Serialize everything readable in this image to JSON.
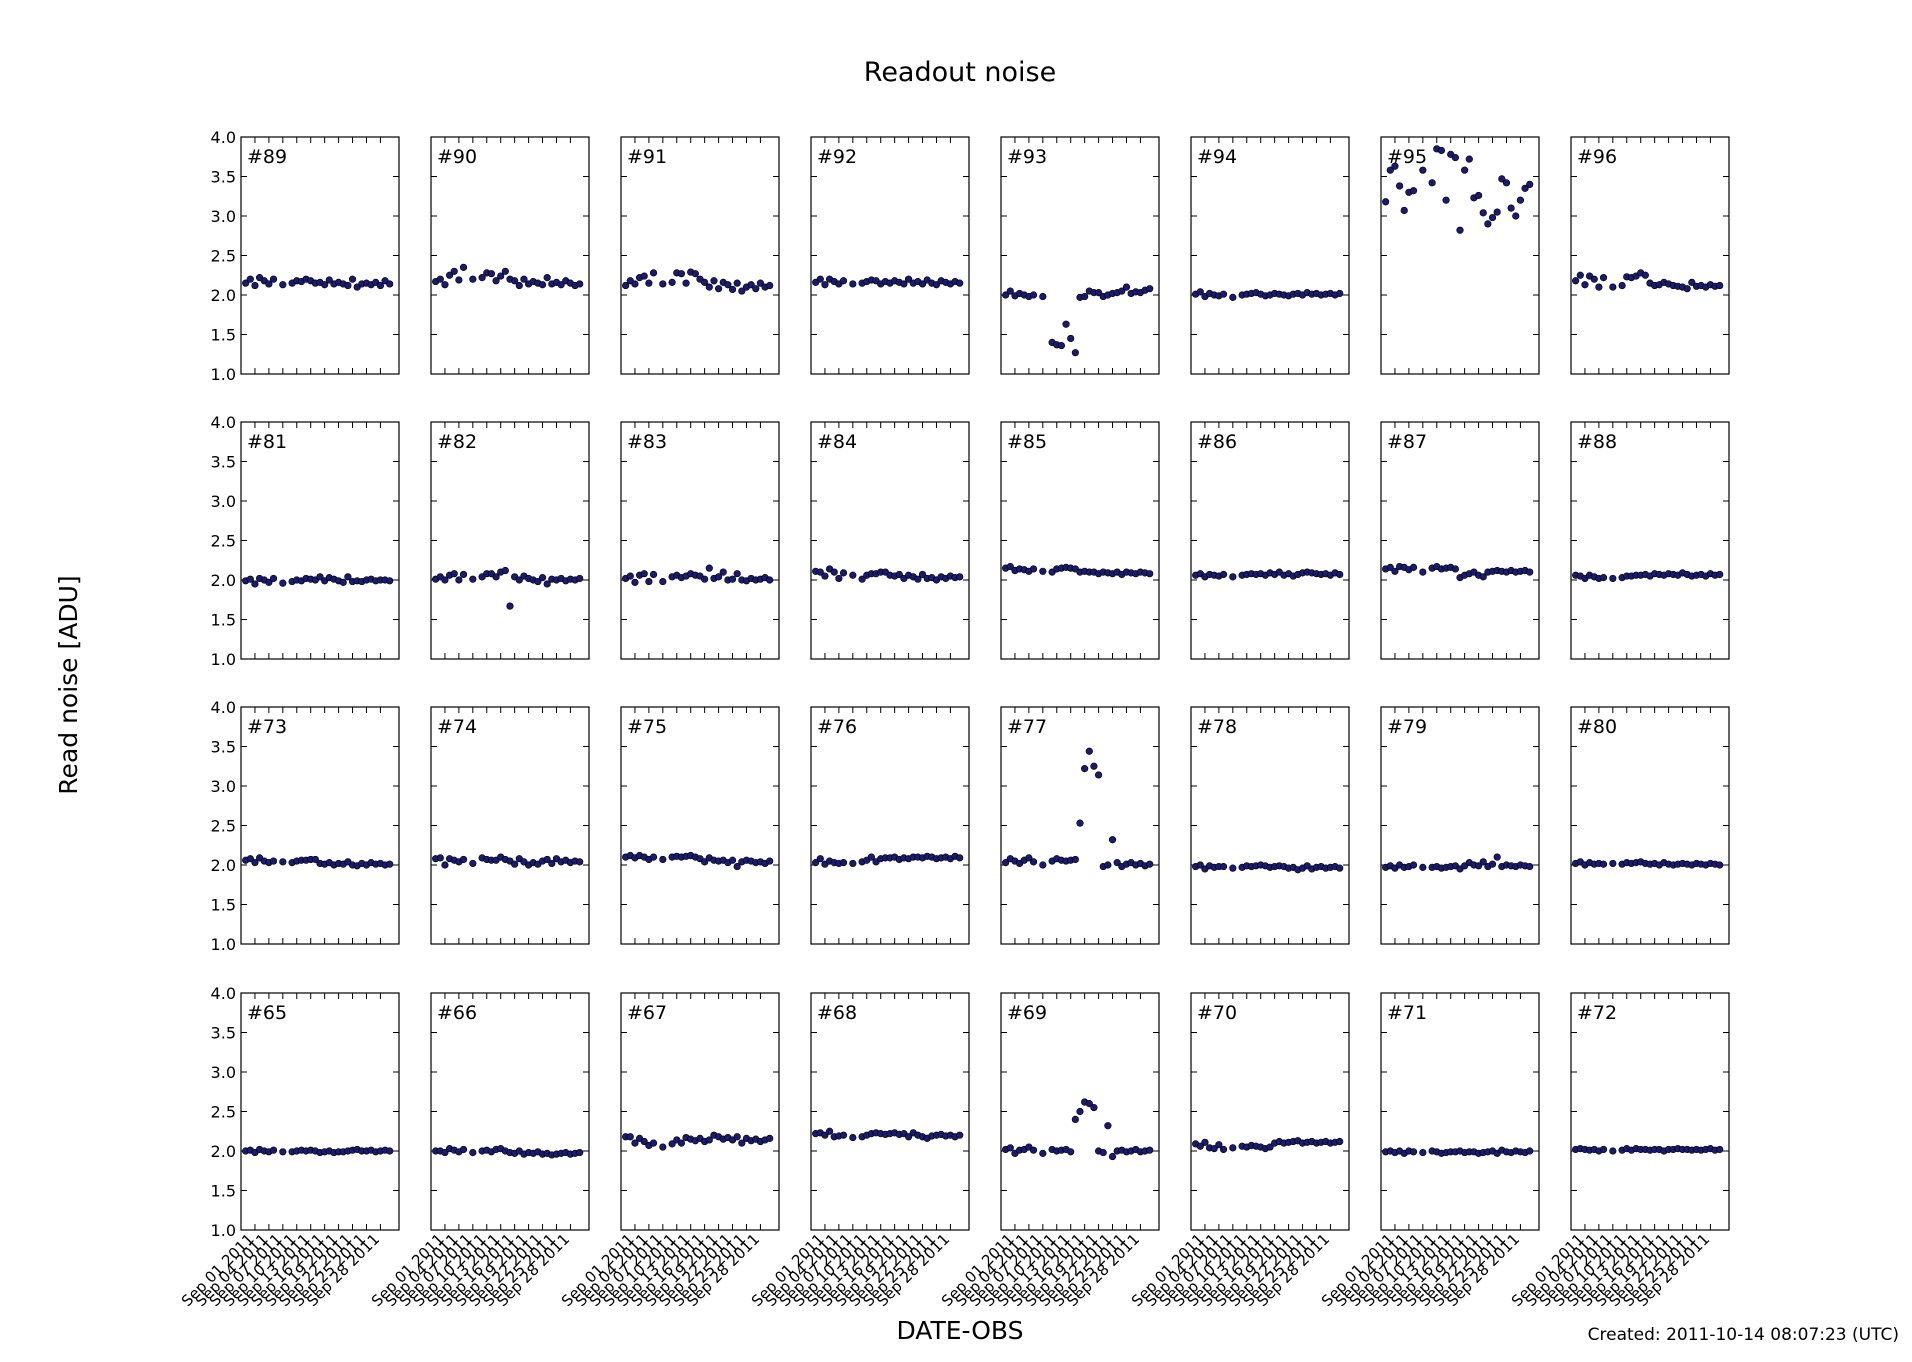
{
  "title": "Readout noise",
  "ylabel": "Read noise [ADU]",
  "xlabel": "DATE-OBS",
  "footer": "Created: 2011-10-14 08:07:23 (UTC)",
  "chart_data": {
    "type": "scatter",
    "layout": "small-multiples 4 rows x 8 columns",
    "grid": false,
    "ylim": [
      1.0,
      4.0
    ],
    "yticks": [
      "1.0",
      "1.5",
      "2.0",
      "2.5",
      "3.0",
      "3.5",
      "4.0"
    ],
    "xlim": [
      "2011-08-29",
      "2011-10-02"
    ],
    "xticks": [
      {
        "date": "2011-09-01",
        "label": "Sep 01 2011"
      },
      {
        "date": "2011-09-04",
        "label": "Sep 04 2011"
      },
      {
        "date": "2011-09-07",
        "label": "Sep 07 2011"
      },
      {
        "date": "2011-09-10",
        "label": "Sep 10 2011"
      },
      {
        "date": "2011-09-13",
        "label": "Sep 13 2011"
      },
      {
        "date": "2011-09-16",
        "label": "Sep 16 2011"
      },
      {
        "date": "2011-09-19",
        "label": "Sep 19 2011"
      },
      {
        "date": "2011-09-22",
        "label": "Sep 22 2011"
      },
      {
        "date": "2011-09-25",
        "label": "Sep 25 2011"
      },
      {
        "date": "2011-09-28",
        "label": "Sep 28 2011"
      }
    ],
    "x": [
      "2011-08-30",
      "2011-08-31",
      "2011-09-01",
      "2011-09-02",
      "2011-09-03",
      "2011-09-04",
      "2011-09-05",
      "2011-09-07",
      "2011-09-09",
      "2011-09-10",
      "2011-09-11",
      "2011-09-12",
      "2011-09-13",
      "2011-09-14",
      "2011-09-15",
      "2011-09-16",
      "2011-09-17",
      "2011-09-18",
      "2011-09-19",
      "2011-09-20",
      "2011-09-21",
      "2011-09-22",
      "2011-09-23",
      "2011-09-24",
      "2011-09-25",
      "2011-09-26",
      "2011-09-27",
      "2011-09-28",
      "2011-09-29",
      "2011-09-30"
    ],
    "panels": [
      {
        "label": "#89",
        "values": [
          2.15,
          2.2,
          2.12,
          2.22,
          2.18,
          2.14,
          2.2,
          2.13,
          2.15,
          2.18,
          2.17,
          2.2,
          2.18,
          2.15,
          2.16,
          2.13,
          2.19,
          2.14,
          2.16,
          2.14,
          2.12,
          2.2,
          2.1,
          2.14,
          2.15,
          2.13,
          2.16,
          2.12,
          2.18,
          2.14
        ]
      },
      {
        "label": "#90",
        "values": [
          2.17,
          2.2,
          2.13,
          2.25,
          2.3,
          2.19,
          2.35,
          2.2,
          2.22,
          2.28,
          2.27,
          2.18,
          2.24,
          2.3,
          2.2,
          2.18,
          2.12,
          2.2,
          2.14,
          2.17,
          2.15,
          2.13,
          2.22,
          2.14,
          2.16,
          2.13,
          2.18,
          2.15,
          2.12,
          2.14
        ]
      },
      {
        "label": "#91",
        "values": [
          2.12,
          2.18,
          2.14,
          2.22,
          2.24,
          2.15,
          2.28,
          2.14,
          2.16,
          2.28,
          2.27,
          2.15,
          2.29,
          2.27,
          2.2,
          2.16,
          2.1,
          2.18,
          2.08,
          2.16,
          2.13,
          2.07,
          2.15,
          2.05,
          2.1,
          2.13,
          2.08,
          2.15,
          2.1,
          2.12
        ]
      },
      {
        "label": "#92",
        "values": [
          2.16,
          2.2,
          2.13,
          2.2,
          2.17,
          2.14,
          2.18,
          2.14,
          2.15,
          2.17,
          2.19,
          2.18,
          2.14,
          2.17,
          2.15,
          2.18,
          2.16,
          2.14,
          2.2,
          2.15,
          2.17,
          2.14,
          2.19,
          2.15,
          2.13,
          2.18,
          2.16,
          2.14,
          2.17,
          2.15
        ]
      },
      {
        "label": "#93",
        "values": [
          2.0,
          2.05,
          1.99,
          2.02,
          2.0,
          1.98,
          2.0,
          1.98,
          1.4,
          1.37,
          1.36,
          1.63,
          1.45,
          1.27,
          1.97,
          1.98,
          2.05,
          2.03,
          2.03,
          1.98,
          2.0,
          2.02,
          2.03,
          2.05,
          2.1,
          2.02,
          2.04,
          2.03,
          2.06,
          2.08
        ]
      },
      {
        "label": "#94",
        "values": [
          2.01,
          2.04,
          1.98,
          2.02,
          2.0,
          1.99,
          2.01,
          1.97,
          2.0,
          2.01,
          2.02,
          2.03,
          2.01,
          1.99,
          2.0,
          2.02,
          2.01,
          2.0,
          1.99,
          2.01,
          2.02,
          2.0,
          2.03,
          2.01,
          2.02,
          2.0,
          2.01,
          2.02,
          2.0,
          2.02
        ]
      },
      {
        "label": "#95",
        "values": [
          3.18,
          3.58,
          3.63,
          3.38,
          3.07,
          3.3,
          3.32,
          3.58,
          3.42,
          3.85,
          3.83,
          3.2,
          3.78,
          3.74,
          2.82,
          3.58,
          3.72,
          3.23,
          3.26,
          3.04,
          2.9,
          2.98,
          3.05,
          3.47,
          3.42,
          3.1,
          3.0,
          3.2,
          3.35,
          3.4
        ]
      },
      {
        "label": "#96",
        "values": [
          2.18,
          2.25,
          2.13,
          2.24,
          2.2,
          2.1,
          2.22,
          2.1,
          2.12,
          2.23,
          2.22,
          2.24,
          2.28,
          2.25,
          2.15,
          2.12,
          2.13,
          2.16,
          2.14,
          2.12,
          2.11,
          2.1,
          2.08,
          2.16,
          2.11,
          2.12,
          2.1,
          2.13,
          2.11,
          2.12
        ]
      },
      {
        "label": "#81",
        "values": [
          1.99,
          2.01,
          1.95,
          2.02,
          2.0,
          1.97,
          2.02,
          1.96,
          1.98,
          2.0,
          1.99,
          2.02,
          2.01,
          2.0,
          2.04,
          1.99,
          2.03,
          2.01,
          1.99,
          1.97,
          2.04,
          1.98,
          1.99,
          1.98,
          2.0,
          2.01,
          1.99,
          2.0,
          2.0,
          1.99
        ]
      },
      {
        "label": "#82",
        "values": [
          2.01,
          2.04,
          2.0,
          2.06,
          2.08,
          2.0,
          2.07,
          2.01,
          2.04,
          2.08,
          2.08,
          2.04,
          2.1,
          2.12,
          1.67,
          2.04,
          2.0,
          2.05,
          2.02,
          2.0,
          1.98,
          2.03,
          1.95,
          2.01,
          2.0,
          2.02,
          1.99,
          2.01,
          2.0,
          2.02
        ]
      },
      {
        "label": "#83",
        "values": [
          2.02,
          2.05,
          1.97,
          2.06,
          2.08,
          1.98,
          2.07,
          1.98,
          2.04,
          2.06,
          2.03,
          2.05,
          2.08,
          2.06,
          2.05,
          2.01,
          2.15,
          2.02,
          2.04,
          2.1,
          2.0,
          2.01,
          2.08,
          2.0,
          1.99,
          2.02,
          2.0,
          2.01,
          2.03,
          2.0
        ]
      },
      {
        "label": "#84",
        "values": [
          2.11,
          2.1,
          2.05,
          2.14,
          2.1,
          2.02,
          2.09,
          2.06,
          2.01,
          2.06,
          2.08,
          2.08,
          2.1,
          2.1,
          2.06,
          2.05,
          2.07,
          2.02,
          2.06,
          2.04,
          2.01,
          2.07,
          2.02,
          2.03,
          2.0,
          2.04,
          2.02,
          2.05,
          2.03,
          2.04
        ]
      },
      {
        "label": "#85",
        "values": [
          2.15,
          2.17,
          2.12,
          2.14,
          2.13,
          2.11,
          2.14,
          2.11,
          2.1,
          2.14,
          2.15,
          2.16,
          2.15,
          2.14,
          2.1,
          2.11,
          2.1,
          2.1,
          2.08,
          2.1,
          2.09,
          2.08,
          2.1,
          2.07,
          2.1,
          2.09,
          2.08,
          2.1,
          2.09,
          2.08
        ]
      },
      {
        "label": "#86",
        "values": [
          2.06,
          2.08,
          2.04,
          2.07,
          2.06,
          2.05,
          2.07,
          2.04,
          2.06,
          2.07,
          2.08,
          2.07,
          2.08,
          2.06,
          2.09,
          2.07,
          2.1,
          2.06,
          2.08,
          2.05,
          2.07,
          2.09,
          2.1,
          2.09,
          2.08,
          2.07,
          2.08,
          2.06,
          2.09,
          2.07
        ]
      },
      {
        "label": "#87",
        "values": [
          2.14,
          2.16,
          2.11,
          2.17,
          2.16,
          2.13,
          2.16,
          2.1,
          2.15,
          2.17,
          2.14,
          2.15,
          2.16,
          2.14,
          2.03,
          2.06,
          2.08,
          2.1,
          2.06,
          2.04,
          2.1,
          2.11,
          2.12,
          2.11,
          2.1,
          2.12,
          2.1,
          2.11,
          2.12,
          2.1
        ]
      },
      {
        "label": "#88",
        "values": [
          2.06,
          2.05,
          2.02,
          2.06,
          2.04,
          2.02,
          2.03,
          2.02,
          2.03,
          2.05,
          2.05,
          2.06,
          2.06,
          2.07,
          2.05,
          2.08,
          2.07,
          2.06,
          2.08,
          2.07,
          2.06,
          2.09,
          2.07,
          2.05,
          2.06,
          2.07,
          2.05,
          2.08,
          2.06,
          2.07
        ]
      },
      {
        "label": "#73",
        "values": [
          2.06,
          2.08,
          2.03,
          2.09,
          2.05,
          2.03,
          2.05,
          2.04,
          2.03,
          2.05,
          2.06,
          2.06,
          2.07,
          2.07,
          2.02,
          2.01,
          2.03,
          2.0,
          2.02,
          2.01,
          2.04,
          2.0,
          1.99,
          2.02,
          2.0,
          2.03,
          2.01,
          2.02,
          2.0,
          2.01
        ]
      },
      {
        "label": "#74",
        "values": [
          2.08,
          2.09,
          2.0,
          2.08,
          2.06,
          2.04,
          2.07,
          2.02,
          2.09,
          2.07,
          2.06,
          2.06,
          2.1,
          2.07,
          2.05,
          2.01,
          2.08,
          2.04,
          2.0,
          2.03,
          2.01,
          2.05,
          2.07,
          2.02,
          2.08,
          2.04,
          2.06,
          2.03,
          2.05,
          2.04
        ]
      },
      {
        "label": "#75",
        "values": [
          2.1,
          2.12,
          2.09,
          2.12,
          2.1,
          2.07,
          2.1,
          2.07,
          2.1,
          2.11,
          2.1,
          2.11,
          2.12,
          2.1,
          2.08,
          2.04,
          2.09,
          2.06,
          2.05,
          2.06,
          2.03,
          2.06,
          1.98,
          2.04,
          2.06,
          2.05,
          2.03,
          2.04,
          2.02,
          2.05
        ]
      },
      {
        "label": "#76",
        "values": [
          2.03,
          2.08,
          2.01,
          2.05,
          2.03,
          2.02,
          2.03,
          2.02,
          2.04,
          2.06,
          2.1,
          2.04,
          2.08,
          2.09,
          2.09,
          2.1,
          2.07,
          2.09,
          2.08,
          2.1,
          2.1,
          2.09,
          2.11,
          2.1,
          2.08,
          2.09,
          2.1,
          2.08,
          2.11,
          2.09
        ]
      },
      {
        "label": "#77",
        "values": [
          2.03,
          2.08,
          2.05,
          2.02,
          2.06,
          2.09,
          2.04,
          2.0,
          2.05,
          2.08,
          2.06,
          2.05,
          2.06,
          2.07,
          2.53,
          3.22,
          3.44,
          3.25,
          3.14,
          1.98,
          2.0,
          2.32,
          2.03,
          1.98,
          2.01,
          2.03,
          2.0,
          2.02,
          1.99,
          2.01
        ]
      },
      {
        "label": "#78",
        "values": [
          1.98,
          2.0,
          1.95,
          1.99,
          1.97,
          1.98,
          1.98,
          1.96,
          1.97,
          1.99,
          1.98,
          1.99,
          2.0,
          1.99,
          1.97,
          1.98,
          1.99,
          1.98,
          1.96,
          1.97,
          1.94,
          1.96,
          1.99,
          1.95,
          1.97,
          1.98,
          1.96,
          1.97,
          1.98,
          1.96
        ]
      },
      {
        "label": "#79",
        "values": [
          1.97,
          1.99,
          1.96,
          2.0,
          1.97,
          1.98,
          2.0,
          1.97,
          1.97,
          1.98,
          1.96,
          1.97,
          1.98,
          1.99,
          1.95,
          1.99,
          2.03,
          2.0,
          1.99,
          2.04,
          1.98,
          2.01,
          2.1,
          1.98,
          2.0,
          1.99,
          1.98,
          2.0,
          1.99,
          1.98
        ]
      },
      {
        "label": "#80",
        "values": [
          2.02,
          2.04,
          2.0,
          2.03,
          2.01,
          2.02,
          2.01,
          2.02,
          2.01,
          2.03,
          2.02,
          2.03,
          2.04,
          2.02,
          2.01,
          2.02,
          2.0,
          2.03,
          2.01,
          2.0,
          2.01,
          2.02,
          2.01,
          2.0,
          2.02,
          2.01,
          2.0,
          2.02,
          2.01,
          2.0
        ]
      },
      {
        "label": "#65",
        "values": [
          2.0,
          2.01,
          1.98,
          2.02,
          2.0,
          1.99,
          2.01,
          1.99,
          1.99,
          2.0,
          2.01,
          2.0,
          2.01,
          2.0,
          1.98,
          1.99,
          2.0,
          1.98,
          1.99,
          1.99,
          2.0,
          2.01,
          2.02,
          2.0,
          2.0,
          2.01,
          1.99,
          2.0,
          2.01,
          2.0
        ]
      },
      {
        "label": "#66",
        "values": [
          2.0,
          2.0,
          1.98,
          2.03,
          2.01,
          1.99,
          2.02,
          1.98,
          2.0,
          2.01,
          1.99,
          2.02,
          2.03,
          2.0,
          1.98,
          1.97,
          2.0,
          1.96,
          1.98,
          1.97,
          1.99,
          1.96,
          1.97,
          1.95,
          1.96,
          1.97,
          1.98,
          1.96,
          1.97,
          1.98
        ]
      },
      {
        "label": "#67",
        "values": [
          2.18,
          2.18,
          2.1,
          2.16,
          2.12,
          2.07,
          2.1,
          2.05,
          2.09,
          2.14,
          2.1,
          2.17,
          2.15,
          2.13,
          2.16,
          2.12,
          2.14,
          2.2,
          2.18,
          2.15,
          2.17,
          2.14,
          2.18,
          2.1,
          2.16,
          2.13,
          2.15,
          2.12,
          2.14,
          2.16
        ]
      },
      {
        "label": "#68",
        "values": [
          2.22,
          2.23,
          2.2,
          2.25,
          2.18,
          2.19,
          2.2,
          2.17,
          2.18,
          2.2,
          2.22,
          2.23,
          2.22,
          2.21,
          2.22,
          2.23,
          2.21,
          2.22,
          2.18,
          2.23,
          2.2,
          2.18,
          2.16,
          2.19,
          2.2,
          2.21,
          2.19,
          2.2,
          2.18,
          2.2
        ]
      },
      {
        "label": "#69",
        "values": [
          2.02,
          2.04,
          1.97,
          2.01,
          2.02,
          2.05,
          2.01,
          1.97,
          2.02,
          2.0,
          2.01,
          2.02,
          1.99,
          2.4,
          2.5,
          2.62,
          2.6,
          2.55,
          2.0,
          1.98,
          2.32,
          1.93,
          2.0,
          2.01,
          1.99,
          2.0,
          2.02,
          1.99,
          2.0,
          2.01
        ]
      },
      {
        "label": "#70",
        "values": [
          2.09,
          2.06,
          2.11,
          2.04,
          2.03,
          2.08,
          2.02,
          2.04,
          2.06,
          2.05,
          2.07,
          2.06,
          2.05,
          2.03,
          2.05,
          2.1,
          2.12,
          2.1,
          2.11,
          2.12,
          2.13,
          2.1,
          2.11,
          2.12,
          2.1,
          2.11,
          2.12,
          2.1,
          2.11,
          2.12
        ]
      },
      {
        "label": "#71",
        "values": [
          1.99,
          2.0,
          1.98,
          2.0,
          1.97,
          2.0,
          1.99,
          1.98,
          2.0,
          1.99,
          1.97,
          1.98,
          1.99,
          1.99,
          2.0,
          1.98,
          1.99,
          1.99,
          1.97,
          1.98,
          1.99,
          2.0,
          1.97,
          2.01,
          1.99,
          1.98,
          2.0,
          1.99,
          1.98,
          2.0
        ]
      },
      {
        "label": "#72",
        "values": [
          2.02,
          2.03,
          2.02,
          2.01,
          2.02,
          2.0,
          2.02,
          2.0,
          2.01,
          2.03,
          2.01,
          2.03,
          2.02,
          2.02,
          2.01,
          2.02,
          2.02,
          2.0,
          2.02,
          2.02,
          2.03,
          2.02,
          2.02,
          2.01,
          2.02,
          2.01,
          2.02,
          2.03,
          2.01,
          2.02
        ]
      }
    ]
  }
}
